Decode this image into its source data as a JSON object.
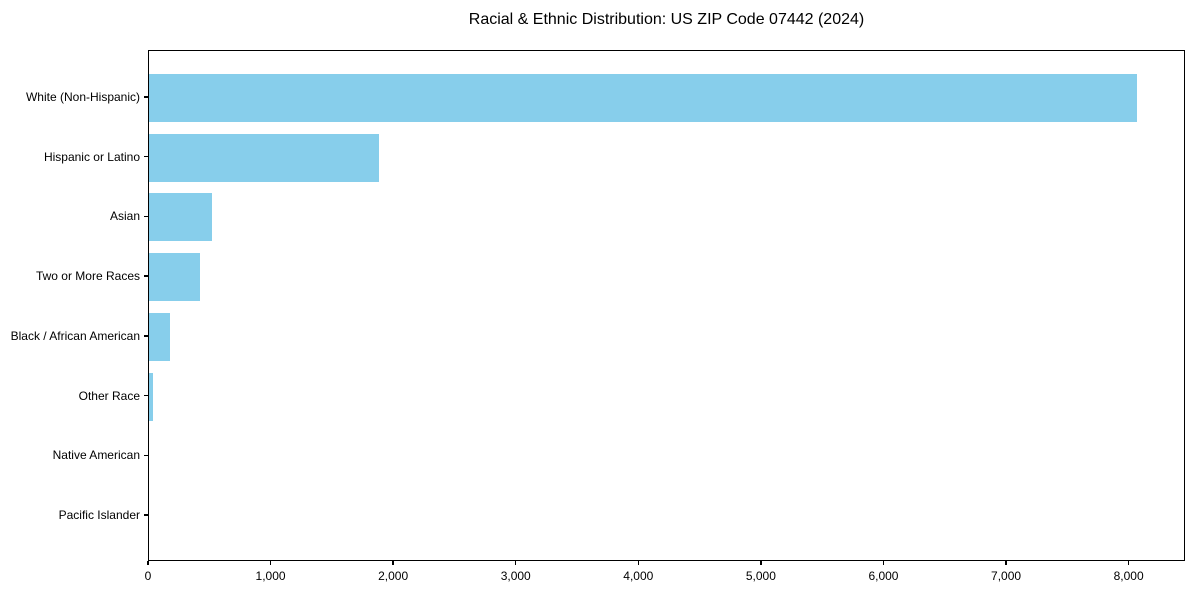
{
  "chart_data": {
    "type": "bar",
    "orientation": "horizontal",
    "title": "Racial & Ethnic Distribution: US ZIP Code 07442 (2024)",
    "xlabel": "",
    "ylabel": "",
    "categories": [
      "White (Non-Hispanic)",
      "Hispanic or Latino",
      "Asian",
      "Two or More Races",
      "Black / African American",
      "Other Race",
      "Native American",
      "Pacific Islander"
    ],
    "values": [
      8060,
      1875,
      510,
      415,
      170,
      30,
      0,
      0
    ],
    "xlim": [
      0,
      8460
    ],
    "x_ticks": [
      0,
      1000,
      2000,
      3000,
      4000,
      5000,
      6000,
      7000,
      8000
    ],
    "x_tick_labels": [
      "0",
      "1,000",
      "2,000",
      "3,000",
      "4,000",
      "5,000",
      "6,000",
      "7,000",
      "8,000"
    ],
    "bar_color": "#87CEEB",
    "spine_color": "#000000",
    "text_color": "#000000",
    "background_color": "#ffffff",
    "grid": false,
    "legend": null
  }
}
